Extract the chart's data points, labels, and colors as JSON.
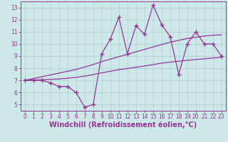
{
  "xlabel": "Windchill (Refroidissement éolien,°C)",
  "ylabel": "",
  "bg_color": "#cce8e8",
  "grid_color": "#aad4d4",
  "line_color": "#993399",
  "x_data": [
    0,
    1,
    2,
    3,
    4,
    5,
    6,
    7,
    8,
    9,
    10,
    11,
    12,
    13,
    14,
    15,
    16,
    17,
    18,
    19,
    20,
    21,
    22,
    23
  ],
  "y_zigzag": [
    7.0,
    7.0,
    7.0,
    6.8,
    6.5,
    6.5,
    6.0,
    4.8,
    5.0,
    9.2,
    10.4,
    12.2,
    9.2,
    11.5,
    10.8,
    13.2,
    11.6,
    10.6,
    7.5,
    10.0,
    11.0,
    10.0,
    10.0,
    9.0
  ],
  "y_upper": [
    7.0,
    7.15,
    7.3,
    7.45,
    7.6,
    7.75,
    7.9,
    8.1,
    8.3,
    8.55,
    8.75,
    8.95,
    9.15,
    9.35,
    9.55,
    9.75,
    9.95,
    10.15,
    10.3,
    10.45,
    10.55,
    10.65,
    10.72,
    10.75
  ],
  "y_lower": [
    7.0,
    7.03,
    7.06,
    7.09,
    7.12,
    7.18,
    7.25,
    7.35,
    7.48,
    7.62,
    7.75,
    7.88,
    7.98,
    8.08,
    8.18,
    8.3,
    8.42,
    8.5,
    8.58,
    8.65,
    8.72,
    8.78,
    8.84,
    8.9
  ],
  "xlim": [
    -0.5,
    23.5
  ],
  "ylim": [
    4.5,
    13.5
  ],
  "yticks": [
    5,
    6,
    7,
    8,
    9,
    10,
    11,
    12,
    13
  ],
  "xticks": [
    0,
    1,
    2,
    3,
    4,
    5,
    6,
    7,
    8,
    9,
    10,
    11,
    12,
    13,
    14,
    15,
    16,
    17,
    18,
    19,
    20,
    21,
    22,
    23
  ],
  "marker": "+",
  "markersize": 4,
  "markeredgewidth": 1.0,
  "linewidth": 0.9,
  "tick_fontsize": 5.5,
  "label_fontsize": 7.0
}
